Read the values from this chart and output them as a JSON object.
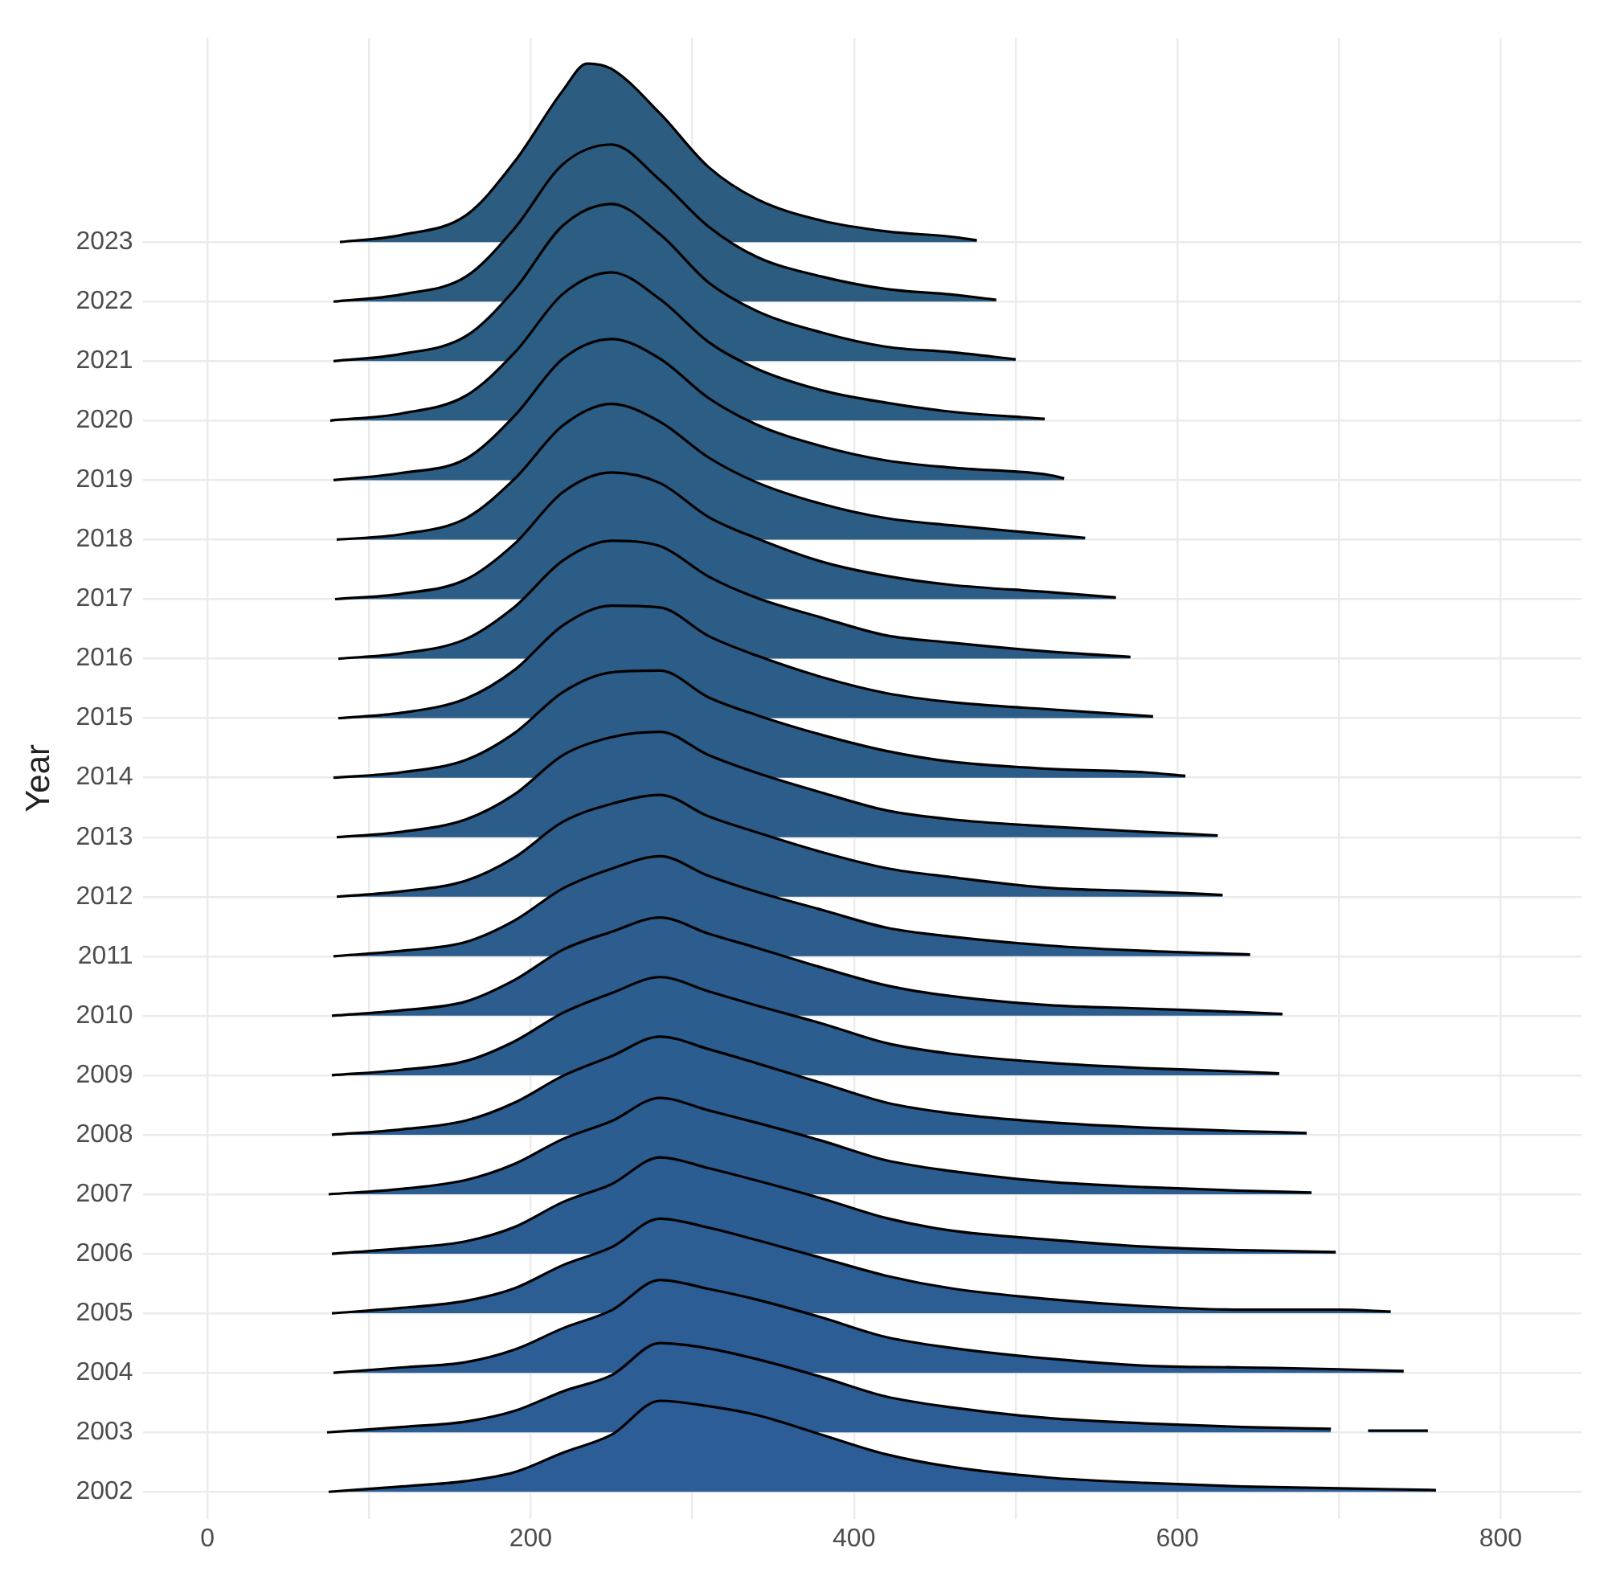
{
  "chart_data": {
    "type": "area",
    "ylabel": "Year",
    "xlim": [
      -40,
      850
    ],
    "xticks": [
      0,
      {
        "value": 100,
        "label": null
      },
      200,
      {
        "value": 300,
        "label": null
      },
      400,
      {
        "value": 500,
        "label": null
      },
      600,
      {
        "value": 700,
        "label": null
      },
      800
    ],
    "ylim": [
      2001.55,
      2026.43
    ],
    "yticks": [
      2002,
      2003,
      2004,
      2005,
      2006,
      2007,
      2008,
      2009,
      2010,
      2011,
      2012,
      2013,
      2014,
      2015,
      2016,
      2017,
      2018,
      2019,
      2020,
      2021,
      2022,
      2023
    ],
    "grid": true,
    "line_style": "solid",
    "series": [
      {
        "color": "#2c5d80",
        "x": [
          82,
          120,
          160,
          190,
          220,
          235,
          250,
          280,
          310,
          340,
          380,
          420,
          460,
          476
        ],
        "values": [
          2023,
          2023.12,
          2023.45,
          2024.35,
          2025.55,
          2026,
          2025.91,
          2025.16,
          2024.26,
          2023.72,
          2023.36,
          2023.18,
          2023.09,
          2023.03
        ]
      },
      {
        "color": "#2c5d81",
        "x": [
          78,
          120,
          160,
          190,
          220,
          250,
          280,
          310,
          340,
          380,
          420,
          460,
          488
        ],
        "values": [
          2022,
          2022.12,
          2022.42,
          2023.23,
          2024.31,
          2024.64,
          2024.04,
          2023.26,
          2022.75,
          2022.42,
          2022.21,
          2022.12,
          2022.03
        ]
      },
      {
        "color": "#2c5d82",
        "x": [
          78,
          120,
          160,
          190,
          220,
          250,
          280,
          310,
          340,
          380,
          420,
          460,
          500
        ],
        "values": [
          2021,
          2021.12,
          2021.42,
          2022.2,
          2023.28,
          2023.64,
          2023.13,
          2022.32,
          2021.84,
          2021.48,
          2021.24,
          2021.15,
          2021.03
        ]
      },
      {
        "color": "#2c5d83",
        "x": [
          76,
          120,
          160,
          190,
          220,
          250,
          280,
          310,
          340,
          380,
          420,
          460,
          518
        ],
        "values": [
          2020,
          2020.12,
          2020.42,
          2021.14,
          2022.13,
          2022.49,
          2022.04,
          2021.32,
          2020.87,
          2020.51,
          2020.3,
          2020.15,
          2020.03
        ]
      },
      {
        "color": "#2c5d84",
        "x": [
          78,
          120,
          160,
          190,
          220,
          250,
          280,
          310,
          340,
          380,
          420,
          460,
          520,
          530
        ],
        "values": [
          2019,
          2019.12,
          2019.36,
          2020.08,
          2021.04,
          2021.37,
          2021.04,
          2020.38,
          2019.93,
          2019.57,
          2019.33,
          2019.21,
          2019.09,
          2019.03
        ]
      },
      {
        "color": "#2c5d85",
        "x": [
          80,
          120,
          160,
          190,
          220,
          250,
          280,
          310,
          340,
          380,
          420,
          460,
          520,
          543
        ],
        "values": [
          2018,
          2018.09,
          2018.36,
          2019.02,
          2019.92,
          2020.28,
          2019.98,
          2019.38,
          2018.96,
          2018.6,
          2018.36,
          2018.24,
          2018.09,
          2018.03
        ]
      },
      {
        "color": "#2c5d86",
        "x": [
          79,
          120,
          160,
          190,
          220,
          250,
          280,
          310,
          340,
          380,
          420,
          460,
          520,
          562
        ],
        "values": [
          2017,
          2017.09,
          2017.33,
          2017.93,
          2018.8,
          2019.13,
          2018.95,
          2018.38,
          2018.02,
          2017.63,
          2017.39,
          2017.24,
          2017.12,
          2017.03
        ]
      },
      {
        "color": "#2c5d87",
        "x": [
          81,
          120,
          160,
          190,
          220,
          250,
          280,
          310,
          340,
          380,
          420,
          460,
          520,
          571
        ],
        "values": [
          2016,
          2016.09,
          2016.33,
          2016.87,
          2017.65,
          2017.98,
          2017.89,
          2017.38,
          2017.02,
          2016.69,
          2016.39,
          2016.27,
          2016.12,
          2016.03
        ]
      },
      {
        "color": "#2c5d88",
        "x": [
          81,
          120,
          160,
          190,
          220,
          250,
          280,
          310,
          340,
          380,
          420,
          460,
          520,
          585
        ],
        "values": [
          2015,
          2015.09,
          2015.33,
          2015.81,
          2016.56,
          2016.89,
          2016.86,
          2016.38,
          2016.05,
          2015.69,
          2015.42,
          2015.27,
          2015.15,
          2015.03
        ]
      },
      {
        "color": "#2c5d89",
        "x": [
          78,
          120,
          160,
          190,
          220,
          250,
          280,
          310,
          340,
          380,
          420,
          460,
          520,
          580,
          605
        ],
        "values": [
          2014,
          2014.09,
          2014.3,
          2014.75,
          2015.44,
          2015.77,
          2015.8,
          2015.35,
          2015.05,
          2014.72,
          2014.45,
          2014.27,
          2014.15,
          2014.09,
          2014.03
        ]
      },
      {
        "color": "#2c5d8a",
        "x": [
          80,
          120,
          160,
          190,
          220,
          250,
          280,
          310,
          340,
          380,
          420,
          460,
          520,
          580,
          625
        ],
        "values": [
          2013,
          2013.09,
          2013.3,
          2013.72,
          2014.38,
          2014.68,
          2014.77,
          2014.38,
          2014.08,
          2013.75,
          2013.45,
          2013.3,
          2013.18,
          2013.09,
          2013.03
        ]
      },
      {
        "color": "#2c5d8b",
        "x": [
          80,
          120,
          160,
          190,
          220,
          250,
          280,
          310,
          340,
          380,
          420,
          460,
          520,
          580,
          628
        ],
        "values": [
          2012,
          2012.09,
          2012.27,
          2012.66,
          2013.26,
          2013.56,
          2013.71,
          2013.35,
          2013.08,
          2012.75,
          2012.48,
          2012.33,
          2012.15,
          2012.09,
          2012.03
        ]
      },
      {
        "color": "#2c5d8d",
        "x": [
          78,
          120,
          160,
          190,
          220,
          250,
          280,
          310,
          340,
          380,
          420,
          460,
          520,
          580,
          645
        ],
        "values": [
          2011,
          2011.09,
          2011.24,
          2011.6,
          2012.14,
          2012.47,
          2012.68,
          2012.35,
          2012.08,
          2011.78,
          2011.48,
          2011.33,
          2011.18,
          2011.09,
          2011.03
        ]
      },
      {
        "color": "#2c5d8e",
        "x": [
          77,
          120,
          160,
          190,
          220,
          250,
          280,
          310,
          340,
          380,
          420,
          460,
          520,
          580,
          640,
          665
        ],
        "values": [
          2010,
          2010.09,
          2010.24,
          2010.6,
          2011.11,
          2011.41,
          2011.65,
          2011.38,
          2011.14,
          2010.81,
          2010.51,
          2010.33,
          2010.18,
          2010.12,
          2010.06,
          2010.03
        ]
      },
      {
        "color": "#2c5d8f",
        "x": [
          77,
          120,
          160,
          190,
          220,
          250,
          280,
          310,
          340,
          380,
          420,
          460,
          520,
          580,
          640,
          663
        ],
        "values": [
          2009,
          2009.09,
          2009.24,
          2009.57,
          2010.05,
          2010.38,
          2010.65,
          2010.41,
          2010.17,
          2009.87,
          2009.54,
          2009.36,
          2009.21,
          2009.12,
          2009.06,
          2009.03
        ]
      },
      {
        "color": "#2c5d90",
        "x": [
          77,
          120,
          160,
          190,
          220,
          250,
          280,
          310,
          340,
          380,
          420,
          460,
          520,
          580,
          640,
          680
        ],
        "values": [
          2008,
          2008.09,
          2008.24,
          2008.54,
          2008.99,
          2009.32,
          2009.65,
          2009.44,
          2009.2,
          2008.87,
          2008.54,
          2008.36,
          2008.21,
          2008.12,
          2008.06,
          2008.03
        ]
      },
      {
        "color": "#2c5d91",
        "x": [
          75,
          120,
          160,
          190,
          220,
          250,
          280,
          310,
          340,
          380,
          420,
          460,
          520,
          580,
          640,
          683
        ],
        "values": [
          2007,
          2007.09,
          2007.24,
          2007.51,
          2007.93,
          2008.23,
          2008.62,
          2008.41,
          2008.2,
          2007.9,
          2007.57,
          2007.39,
          2007.21,
          2007.12,
          2007.06,
          2007.03
        ]
      },
      {
        "color": "#2c5d92",
        "x": [
          77,
          120,
          160,
          190,
          220,
          250,
          280,
          310,
          340,
          380,
          420,
          460,
          520,
          580,
          640,
          698
        ],
        "values": [
          2006,
          2006.09,
          2006.21,
          2006.45,
          2006.87,
          2007.17,
          2007.62,
          2007.44,
          2007.23,
          2006.93,
          2006.6,
          2006.39,
          2006.24,
          2006.12,
          2006.06,
          2006.03
        ]
      },
      {
        "color": "#2c5d93",
        "x": [
          77,
          120,
          160,
          190,
          220,
          250,
          280,
          310,
          340,
          380,
          420,
          460,
          520,
          580,
          640,
          700,
          732
        ],
        "values": [
          2005,
          2005.09,
          2005.21,
          2005.42,
          2005.81,
          2006.11,
          2006.59,
          2006.44,
          2006.23,
          2005.93,
          2005.63,
          2005.42,
          2005.24,
          2005.12,
          2005.06,
          2005.06,
          2005.03
        ]
      },
      {
        "color": "#2c5d94",
        "x": [
          78,
          120,
          160,
          190,
          220,
          250,
          280,
          310,
          340,
          380,
          420,
          460,
          520,
          580,
          640,
          700,
          740
        ],
        "values": [
          2004,
          2004.09,
          2004.18,
          2004.39,
          2004.75,
          2005.05,
          2005.56,
          2005.41,
          2005.23,
          2004.93,
          2004.6,
          2004.42,
          2004.24,
          2004.12,
          2004.09,
          2004.06,
          2004.03
        ]
      },
      {
        "color": "#2c5d95",
        "x": [
          74,
          120,
          160,
          190,
          220,
          250,
          280,
          310,
          340,
          380,
          420,
          460,
          520,
          580,
          640,
          695,
          706,
          718,
          755
        ],
        "values": [
          2003,
          2003.09,
          2003.18,
          2003.36,
          2003.69,
          2003.96,
          2004.5,
          2004.41,
          2004.23,
          2003.93,
          2003.6,
          2003.42,
          2003.24,
          2003.15,
          2003.09,
          2003.06,
          null,
          2003.03,
          2003.03
        ]
      },
      {
        "color": "#2c5d96",
        "x": [
          75,
          120,
          160,
          190,
          220,
          250,
          280,
          310,
          340,
          380,
          420,
          460,
          520,
          580,
          640,
          700,
          760
        ],
        "values": [
          2002,
          2002.09,
          2002.18,
          2002.33,
          2002.66,
          2002.96,
          2003.53,
          2003.44,
          2003.29,
          2002.96,
          2002.63,
          2002.42,
          2002.24,
          2002.15,
          2002.09,
          2002.06,
          2002.03
        ]
      }
    ]
  }
}
